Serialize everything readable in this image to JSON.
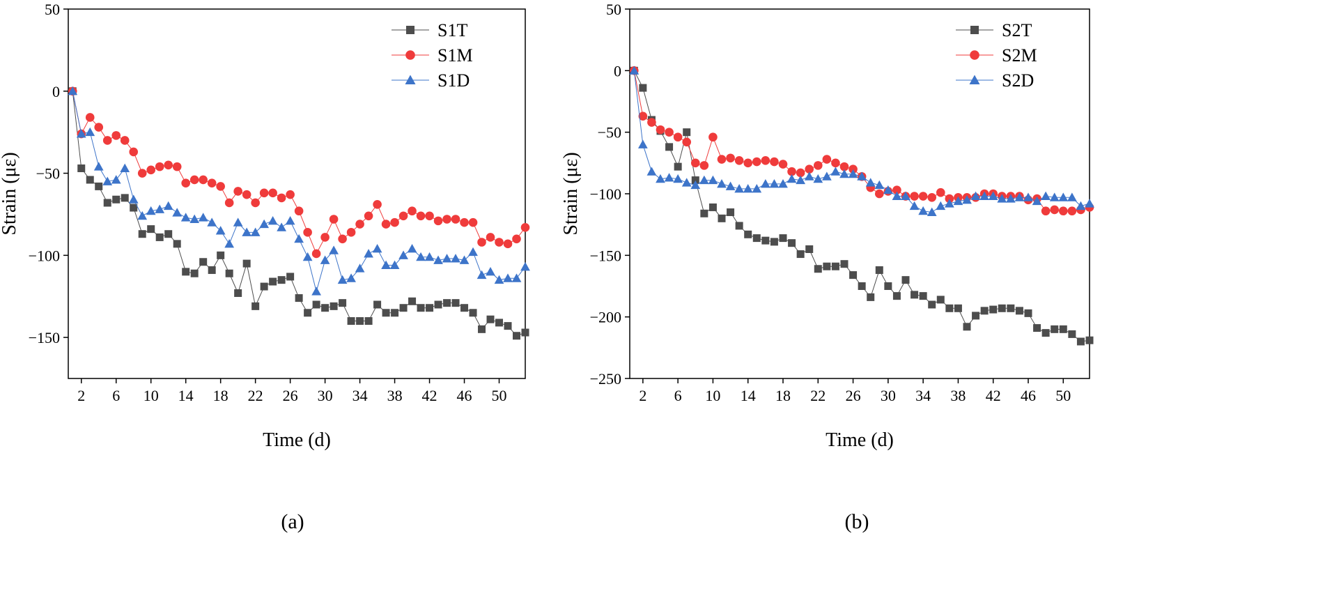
{
  "chart_data": [
    {
      "type": "line",
      "caption": "(a)",
      "xlabel": "Time (d)",
      "ylabel": "Strain (με)",
      "xlim": [
        0.5,
        53
      ],
      "ylim": [
        -175,
        50
      ],
      "xticks": [
        2,
        6,
        10,
        14,
        18,
        22,
        26,
        30,
        34,
        38,
        42,
        46,
        50
      ],
      "yticks": [
        50,
        0,
        -50,
        -100,
        -150
      ],
      "legend_position": "top-right",
      "x": [
        1,
        2,
        3,
        4,
        5,
        6,
        7,
        8,
        9,
        10,
        11,
        12,
        13,
        14,
        15,
        16,
        17,
        18,
        19,
        20,
        21,
        22,
        23,
        24,
        25,
        26,
        27,
        28,
        29,
        30,
        31,
        32,
        33,
        34,
        35,
        36,
        37,
        38,
        39,
        40,
        41,
        42,
        43,
        44,
        45,
        46,
        47,
        48,
        49,
        50,
        51,
        52,
        53
      ],
      "series": [
        {
          "name": "S1T",
          "color": "#4d4d4d",
          "marker": "square",
          "values": [
            0,
            -47,
            -54,
            -58,
            -68,
            -66,
            -65,
            -71,
            -87,
            -84,
            -89,
            -87,
            -93,
            -110,
            -111,
            -104,
            -109,
            -100,
            -111,
            -123,
            -105,
            -131,
            -119,
            -116,
            -115,
            -113,
            -126,
            -135,
            -130,
            -132,
            -131,
            -129,
            -140,
            -140,
            -140,
            -130,
            -135,
            -135,
            -132,
            -128,
            -132,
            -132,
            -130,
            -129,
            -129,
            -132,
            -135,
            -145,
            -139,
            -141,
            -143,
            -149,
            -147
          ]
        },
        {
          "name": "S1M",
          "color": "#ef3b3b",
          "marker": "circle",
          "values": [
            0,
            -26,
            -16,
            -22,
            -30,
            -27,
            -30,
            -37,
            -50,
            -48,
            -46,
            -45,
            -46,
            -56,
            -54,
            -54,
            -56,
            -58,
            -68,
            -61,
            -63,
            -68,
            -62,
            -62,
            -65,
            -63,
            -73,
            -86,
            -99,
            -89,
            -78,
            -90,
            -86,
            -81,
            -76,
            -69,
            -81,
            -80,
            -76,
            -73,
            -76,
            -76,
            -79,
            -78,
            -78,
            -80,
            -80,
            -92,
            -89,
            -92,
            -93,
            -90,
            -83
          ]
        },
        {
          "name": "S1D",
          "color": "#3d74c9",
          "marker": "triangle",
          "values": [
            0,
            -26,
            -25,
            -46,
            -55,
            -54,
            -47,
            -66,
            -76,
            -73,
            -72,
            -70,
            -74,
            -77,
            -78,
            -77,
            -80,
            -85,
            -93,
            -80,
            -86,
            -86,
            -81,
            -79,
            -83,
            -79,
            -90,
            -101,
            -122,
            -103,
            -97,
            -115,
            -114,
            -108,
            -99,
            -96,
            -106,
            -106,
            -100,
            -96,
            -101,
            -101,
            -103,
            -102,
            -102,
            -103,
            -98,
            -112,
            -110,
            -115,
            -114,
            -114,
            -107
          ]
        }
      ]
    },
    {
      "type": "line",
      "caption": "(b)",
      "xlabel": "Time (d)",
      "ylabel": "Strain (με)",
      "xlim": [
        0.5,
        53
      ],
      "ylim": [
        -250,
        50
      ],
      "xticks": [
        2,
        6,
        10,
        14,
        18,
        22,
        26,
        30,
        34,
        38,
        42,
        46,
        50
      ],
      "yticks": [
        50,
        0,
        -50,
        -100,
        -150,
        -200,
        -250
      ],
      "legend_position": "top-right",
      "x": [
        1,
        2,
        3,
        4,
        5,
        6,
        7,
        8,
        9,
        10,
        11,
        12,
        13,
        14,
        15,
        16,
        17,
        18,
        19,
        20,
        21,
        22,
        23,
        24,
        25,
        26,
        27,
        28,
        29,
        30,
        31,
        32,
        33,
        34,
        35,
        36,
        37,
        38,
        39,
        40,
        41,
        42,
        43,
        44,
        45,
        46,
        47,
        48,
        49,
        50,
        51,
        52,
        53
      ],
      "series": [
        {
          "name": "S2T",
          "color": "#4d4d4d",
          "marker": "square",
          "values": [
            0,
            -14,
            -40,
            -49,
            -62,
            -78,
            -50,
            -89,
            -116,
            -111,
            -120,
            -115,
            -126,
            -133,
            -136,
            -138,
            -139,
            -136,
            -140,
            -149,
            -145,
            -161,
            -159,
            -159,
            -157,
            -166,
            -175,
            -184,
            -162,
            -175,
            -183,
            -170,
            -182,
            -183,
            -190,
            -186,
            -193,
            -193,
            -208,
            -199,
            -195,
            -194,
            -193,
            -193,
            -195,
            -197,
            -209,
            -213,
            -210,
            -210,
            -214,
            -220,
            -219
          ]
        },
        {
          "name": "S2M",
          "color": "#ef3b3b",
          "marker": "circle",
          "values": [
            0,
            -37,
            -42,
            -48,
            -50,
            -54,
            -58,
            -75,
            -77,
            -54,
            -72,
            -71,
            -73,
            -75,
            -74,
            -73,
            -74,
            -76,
            -82,
            -83,
            -80,
            -77,
            -72,
            -75,
            -78,
            -80,
            -86,
            -95,
            -100,
            -98,
            -97,
            -102,
            -102,
            -102,
            -103,
            -99,
            -104,
            -103,
            -103,
            -103,
            -100,
            -100,
            -102,
            -102,
            -102,
            -105,
            -104,
            -114,
            -113,
            -114,
            -114,
            -113,
            -111
          ]
        },
        {
          "name": "S2D",
          "color": "#3d74c9",
          "marker": "triangle",
          "values": [
            0,
            -60,
            -82,
            -88,
            -87,
            -88,
            -91,
            -93,
            -89,
            -89,
            -92,
            -94,
            -96,
            -96,
            -96,
            -92,
            -92,
            -92,
            -88,
            -89,
            -86,
            -88,
            -86,
            -82,
            -84,
            -84,
            -86,
            -91,
            -93,
            -97,
            -102,
            -102,
            -110,
            -114,
            -115,
            -110,
            -108,
            -106,
            -105,
            -102,
            -102,
            -102,
            -104,
            -104,
            -103,
            -103,
            -106,
            -102,
            -103,
            -103,
            -103,
            -110,
            -108
          ]
        }
      ]
    }
  ]
}
